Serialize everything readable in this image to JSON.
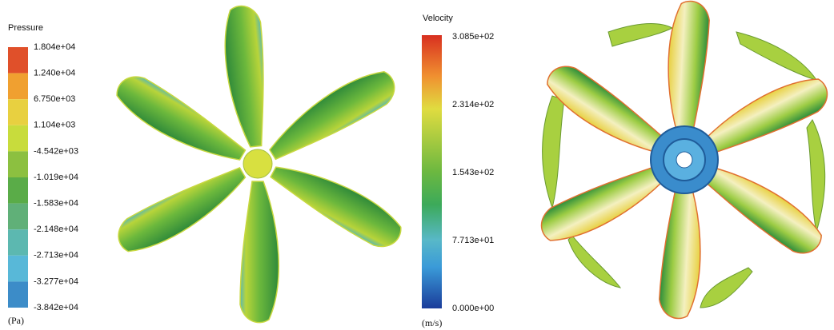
{
  "pressure_colorbar": {
    "title": "Pressure",
    "unit": "(Pa)",
    "ticks": [
      "1.804e+04",
      "1.240e+04",
      "6.750e+03",
      "1.104e+03",
      "-4.542e+03",
      "-1.019e+04",
      "-1.583e+04",
      "-2.148e+04",
      "-2.713e+04",
      "-3.277e+04",
      "-3.842e+04"
    ]
  },
  "velocity_colorbar": {
    "title": "Velocity",
    "unit": "(m/s)",
    "ticks": [
      "3.085e+02",
      "2.314e+02",
      "1.543e+02",
      "7.713e+01",
      "0.000e+00"
    ]
  }
}
